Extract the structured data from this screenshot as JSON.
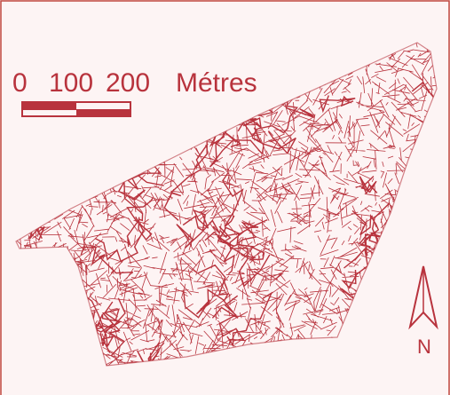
{
  "scale": {
    "ticks": [
      0,
      100,
      200
    ],
    "unit": "Métres"
  },
  "north": "N"
}
